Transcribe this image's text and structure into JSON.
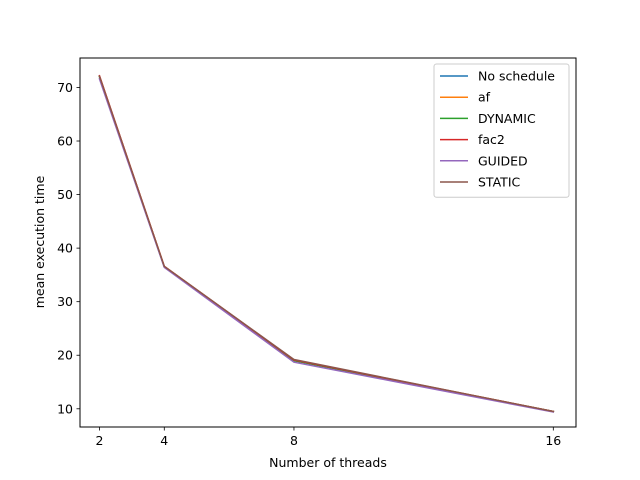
{
  "chart_data": {
    "type": "line",
    "title": "",
    "xlabel": "Number of threads",
    "ylabel": "mean execution time",
    "x": [
      2,
      4,
      8,
      16
    ],
    "xticks": [
      2,
      4,
      8,
      16
    ],
    "yticks": [
      10,
      20,
      30,
      40,
      50,
      60,
      70
    ],
    "xlim": [
      1.4,
      16.7
    ],
    "ylim": [
      6.6,
      75.5
    ],
    "grid": false,
    "legend_position": "top-right",
    "series": [
      {
        "name": "No schedule",
        "color": "#1f77b4",
        "values": [
          72.0,
          36.5,
          19.0,
          9.5
        ]
      },
      {
        "name": "af",
        "color": "#ff7f0e",
        "values": [
          72.1,
          36.6,
          19.1,
          9.5
        ]
      },
      {
        "name": "DYNAMIC",
        "color": "#2ca02c",
        "values": [
          72.0,
          36.5,
          19.0,
          9.5
        ]
      },
      {
        "name": "fac2",
        "color": "#d62728",
        "values": [
          72.2,
          36.6,
          19.1,
          9.5
        ]
      },
      {
        "name": "GUIDED",
        "color": "#9467bd",
        "values": [
          71.6,
          36.4,
          18.7,
          9.4
        ]
      },
      {
        "name": "STATIC",
        "color": "#8c564b",
        "values": [
          72.1,
          36.6,
          19.2,
          9.5
        ]
      }
    ]
  }
}
